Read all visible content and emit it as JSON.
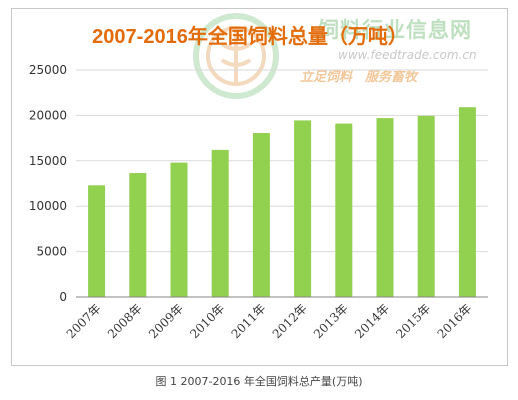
{
  "watermark": {
    "name": "饲料行业信息网",
    "url": "www.feedtrade.com.cn",
    "slogan": "立足饲料　服务畜牧"
  },
  "caption": "图 1 2007-2016 年全国饲料总产量(万吨)",
  "colors": {
    "bar": "#92d050",
    "title": "#e36c0a",
    "grid": "#d9d9d9",
    "axis": "#868686"
  },
  "chart_data": {
    "type": "bar",
    "title": "2007-2016年全国饲料总量（万吨）",
    "categories": [
      "2007年",
      "2008年",
      "2009年",
      "2010年",
      "2011年",
      "2012年",
      "2013年",
      "2014年",
      "2015年",
      "2016年"
    ],
    "values": [
      12300,
      13650,
      14800,
      16200,
      18060,
      19450,
      19100,
      19700,
      19950,
      20900
    ],
    "ylim": [
      0,
      25000
    ],
    "yticks": [
      0,
      5000,
      10000,
      15000,
      20000,
      25000
    ],
    "grid": true,
    "legend": false
  }
}
